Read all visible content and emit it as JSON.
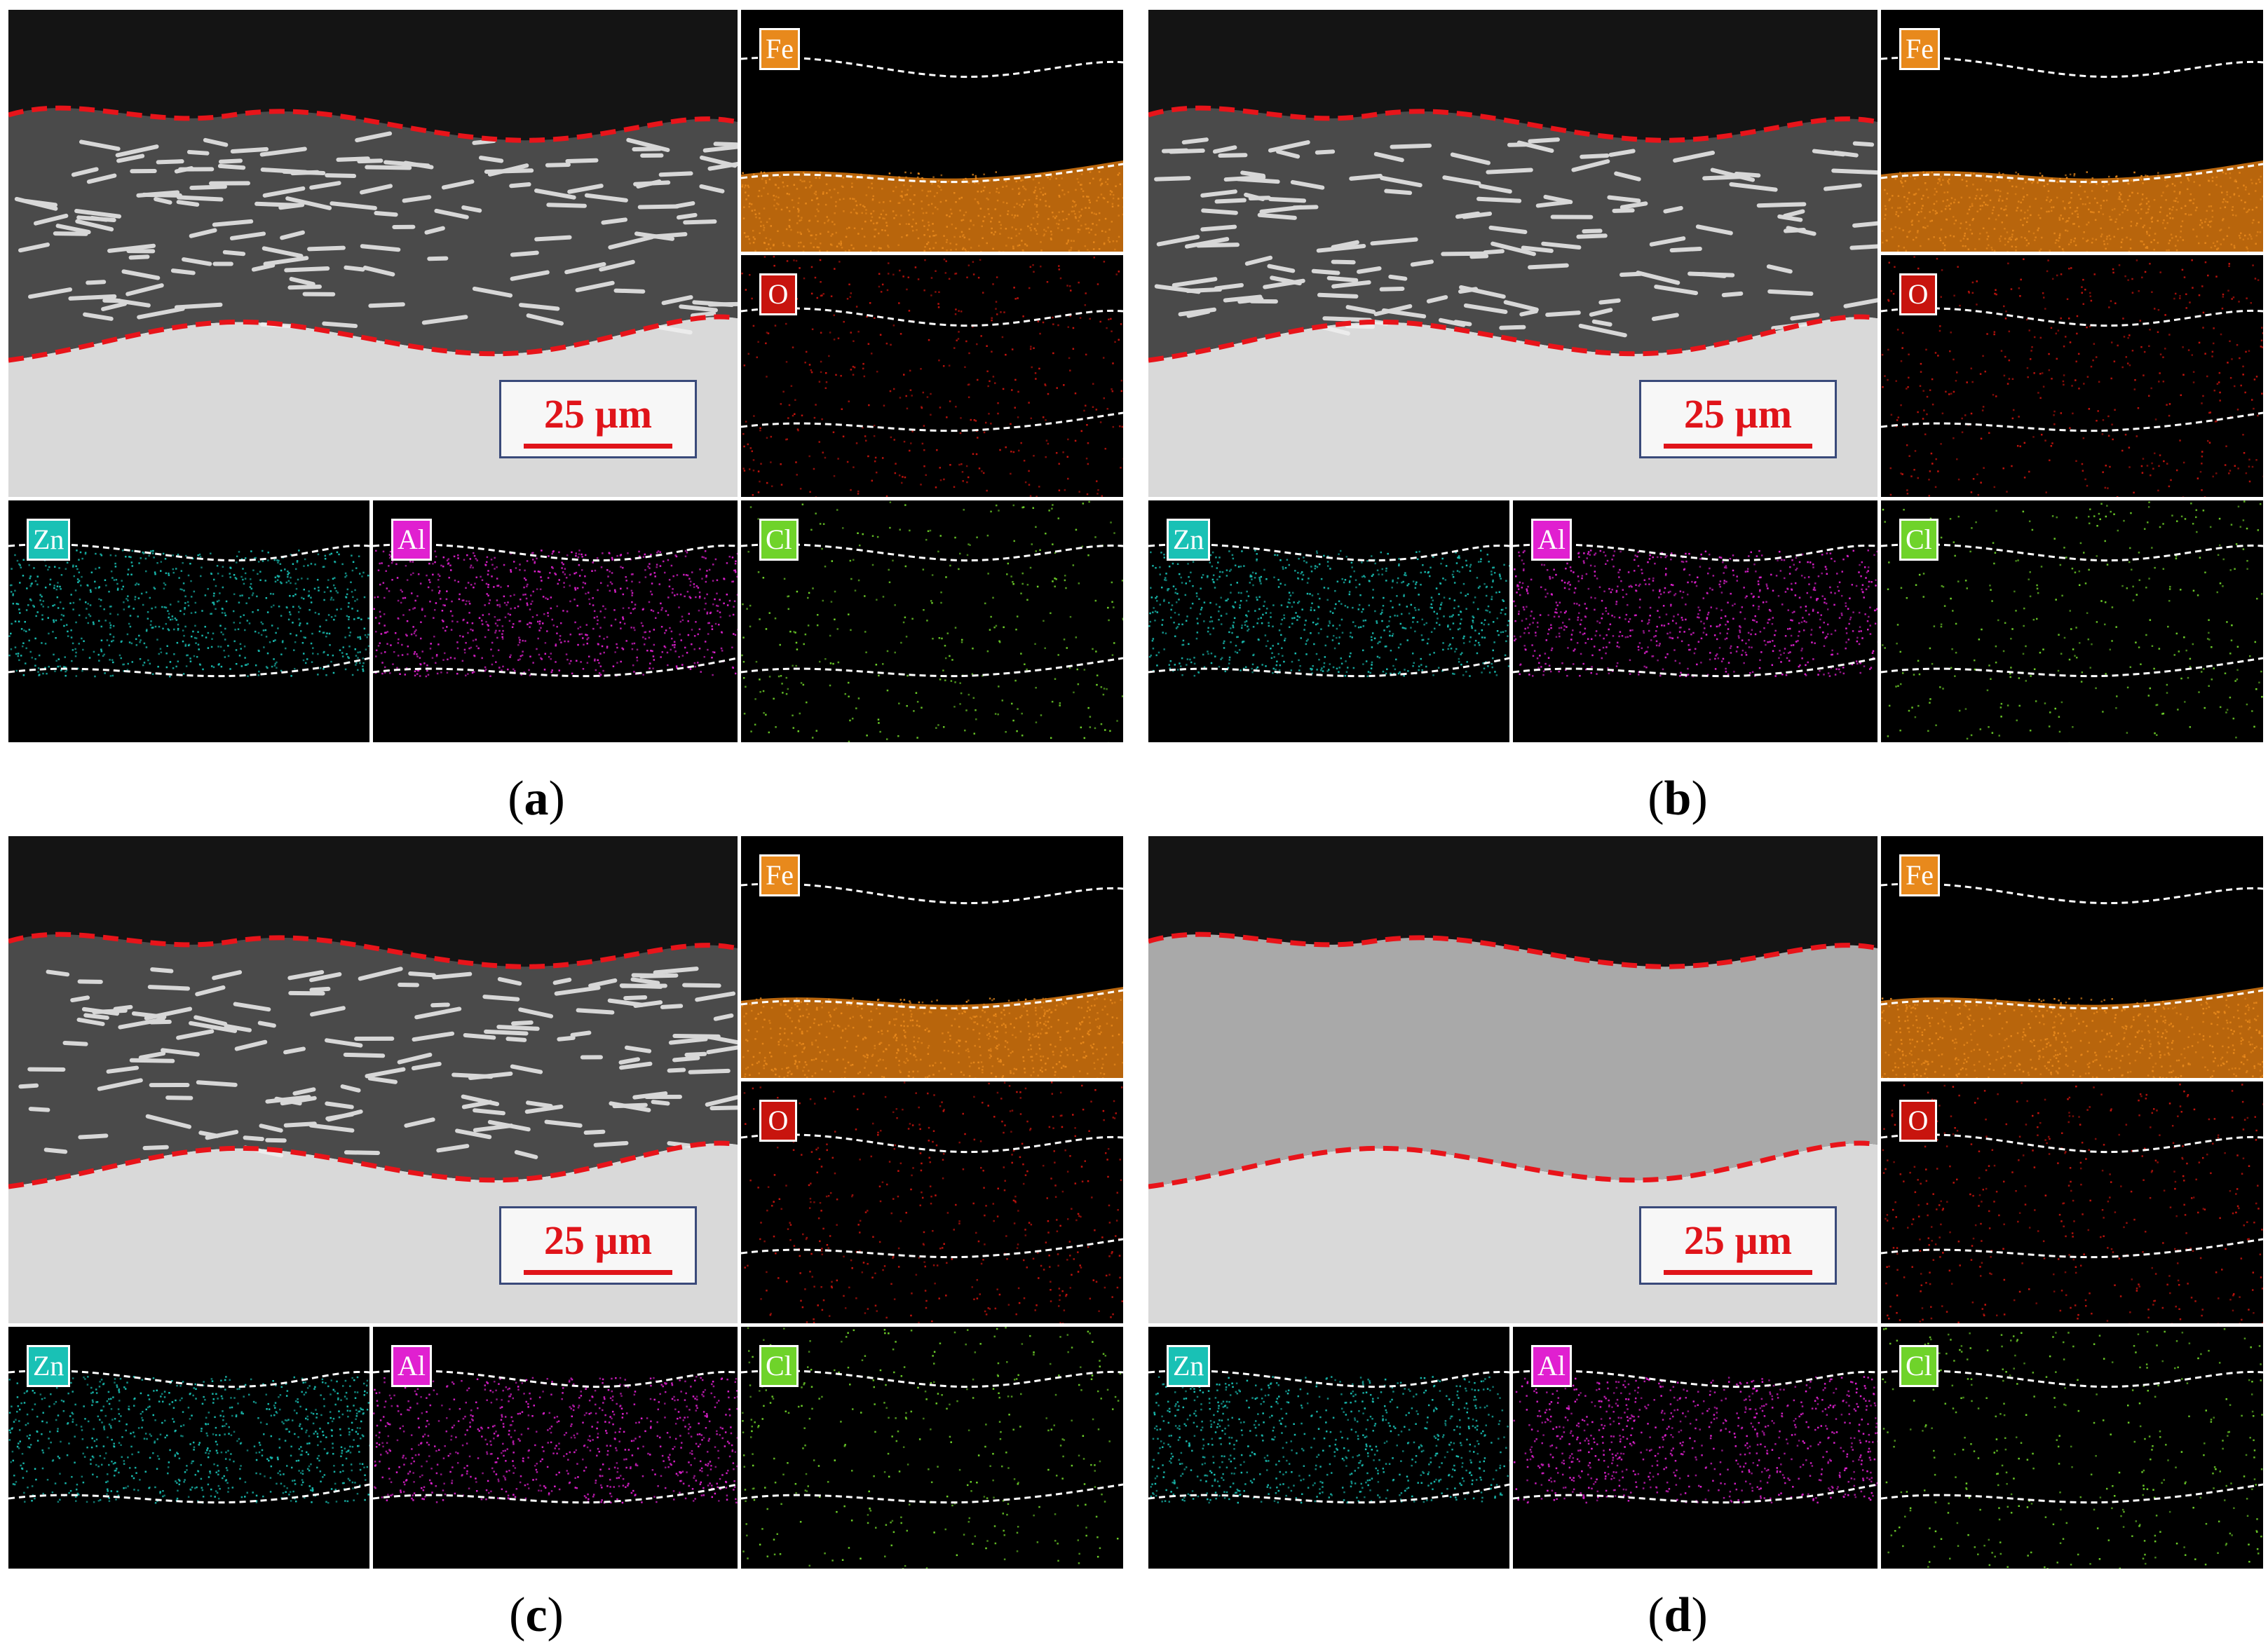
{
  "panels": [
    {
      "id": "a",
      "caption_open": "(",
      "caption_letter": "a",
      "caption_close": ")",
      "scale_label": "25 µm",
      "elements": {
        "fe": "Fe",
        "o": "O",
        "zn": "Zn",
        "al": "Al",
        "cl": "Cl"
      }
    },
    {
      "id": "b",
      "caption_open": "(",
      "caption_letter": "b",
      "caption_close": ")",
      "scale_label": "25 µm",
      "elements": {
        "fe": "Fe",
        "o": "O",
        "zn": "Zn",
        "al": "Al",
        "cl": "Cl"
      }
    },
    {
      "id": "c",
      "caption_open": "(",
      "caption_letter": "c",
      "caption_close": ")",
      "scale_label": "25 µm",
      "elements": {
        "fe": "Fe",
        "o": "O",
        "zn": "Zn",
        "al": "Al",
        "cl": "Cl"
      }
    },
    {
      "id": "d",
      "caption_open": "(",
      "caption_letter": "d",
      "caption_close": ")",
      "scale_label": "25 µm",
      "elements": {
        "fe": "Fe",
        "o": "O",
        "zn": "Zn",
        "al": "Al",
        "cl": "Cl"
      }
    }
  ],
  "colors": {
    "fe": "#e8891c",
    "o": "#c8140e",
    "zn": "#19c1b5",
    "al": "#e020d0",
    "cl": "#6fd32a",
    "boundary": "#e8141a",
    "sem_coating": "#444444",
    "sem_substrate": "#d6d6d6"
  }
}
